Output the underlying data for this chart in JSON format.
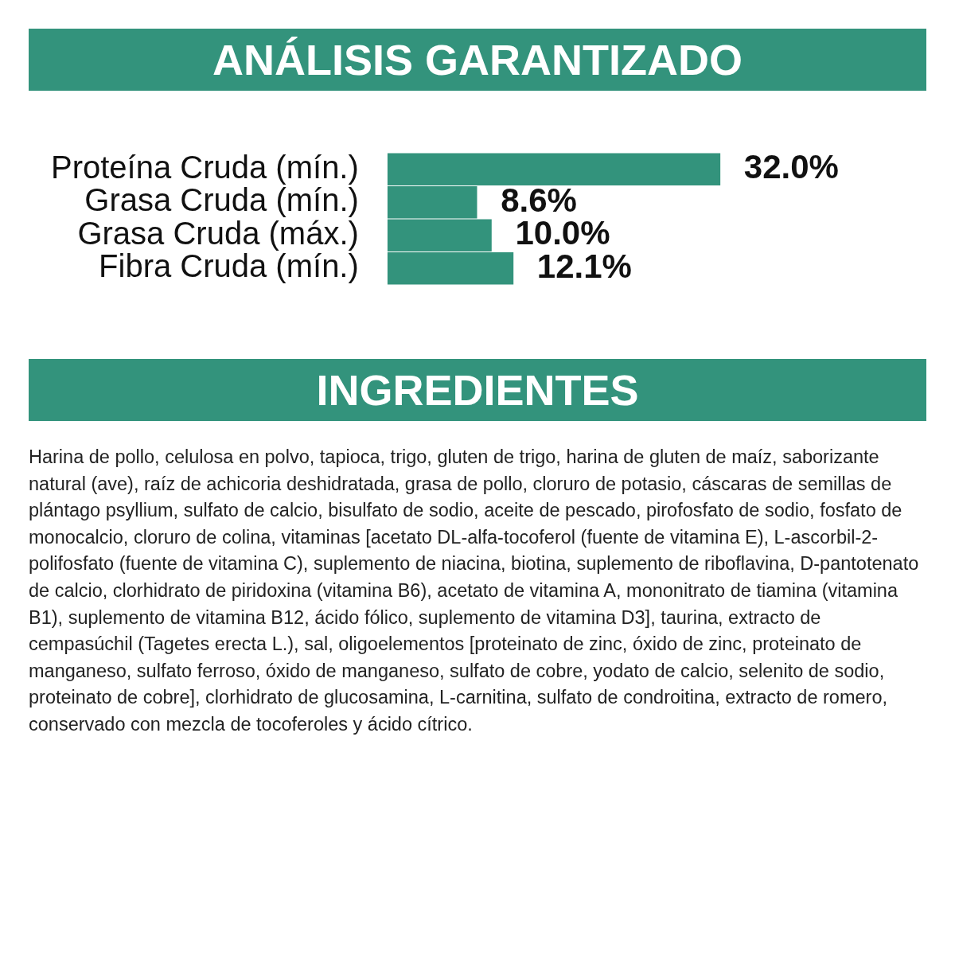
{
  "chart_data": {
    "type": "bar",
    "orientation": "horizontal",
    "title": "ANÁLISIS GARANTIZADO",
    "categories": [
      "Proteína Cruda (mín.)",
      "Grasa Cruda (mín.)",
      "Grasa Cruda (máx.)",
      "Fibra Cruda (mín.)"
    ],
    "values": [
      32.0,
      8.6,
      10.0,
      12.1
    ],
    "value_labels": [
      "32.0%",
      "8.6%",
      "10.0%",
      "12.1%"
    ],
    "color": "#33937c",
    "annotations": [
      "INGREDIENTES",
      "Harina de pollo, celulosa en polvo, tapioca, trigo, gluten de trigo, harina de gluten de maíz, saborizante natural (ave), raíz de achicoria deshidratada, grasa de pollo, cloruro de potasio, cáscaras de semillas de plántago psyllium, sulfato de calcio, bisulfato de sodio, aceite de pescado, pirofosfato de sodio, fosfato de monocalcio, cloruro de colina, vitaminas [acetato DL-alfa-tocoferol (fuente de vitamina E), L-ascorbil-2-polifosfato (fuente de vitamina C), suplemento de niacina, biotina, suplemento de riboflavina, D-pantotenato de calcio, clorhidrato de piridoxina (vitamina B6), acetato de vitamina A, mononitrato de tiamina (vitamina B1), suplemento de vitamina B12, ácido fólico, suplemento de vitamina D3], taurina, extracto de cempasúchil (Tagetes erecta L.), sal, oligoelementos [proteinato de zinc, óxido de zinc, proteinato de manganeso, sulfato ferroso, óxido de manganeso, sulfato de cobre, yodato de calcio, selenito de sodio, proteinato de cobre], clorhidrato de glucosamina, L-carnitina, sulfato de condroitina, extracto de romero, conservado con mezcla de tocoferoles y ácido cítrico."
    ]
  }
}
